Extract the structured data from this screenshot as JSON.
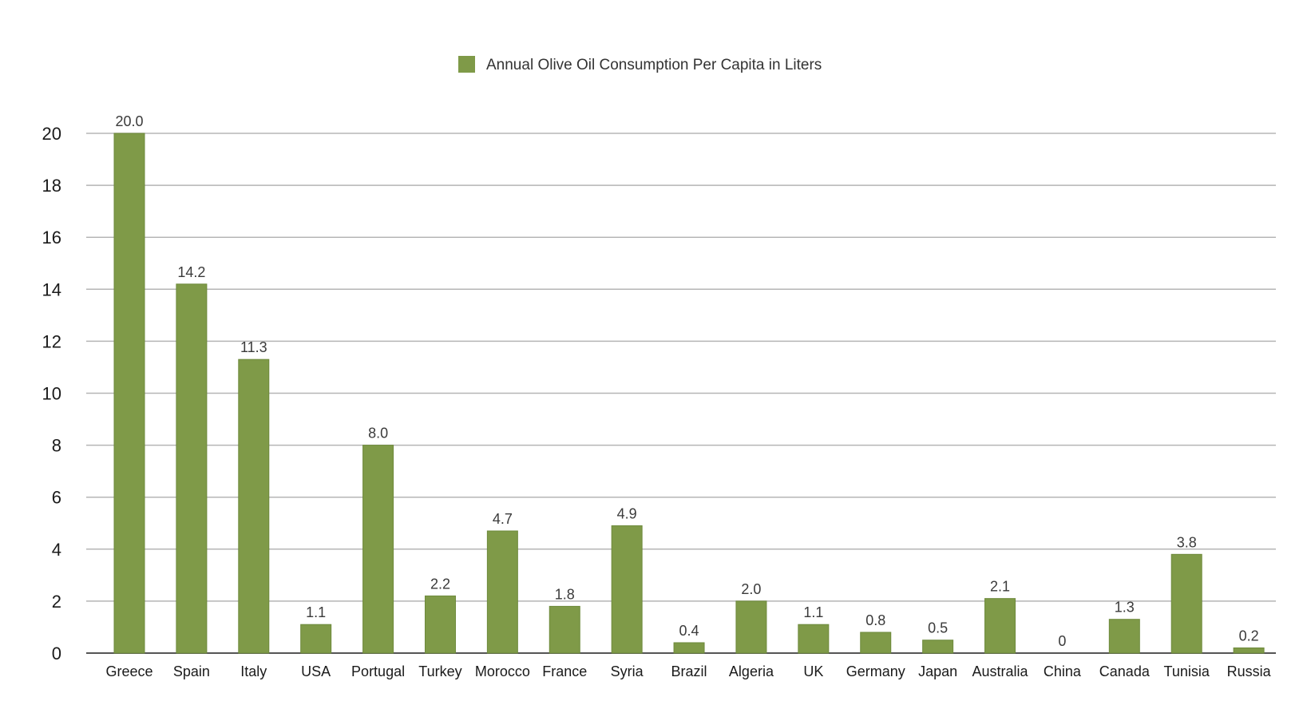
{
  "chart_data": {
    "type": "bar",
    "legend": "Annual Olive Oil Consumption Per Capita in Liters",
    "legend_position": "top-center",
    "grid": true,
    "ylim": [
      0,
      20
    ],
    "yticks": [
      0,
      2,
      4,
      6,
      8,
      10,
      12,
      14,
      16,
      18,
      20
    ],
    "categories": [
      "Greece",
      "Spain",
      "Italy",
      "USA",
      "Portugal",
      "Turkey",
      "Morocco",
      "France",
      "Syria",
      "Brazil",
      "Algeria",
      "UK",
      "Germany",
      "Japan",
      "Australia",
      "China",
      "Canada",
      "Tunisia",
      "Russia"
    ],
    "series": [
      {
        "name": "Annual Olive Oil Consumption Per Capita in Liters",
        "values": [
          20.0,
          14.2,
          11.3,
          1.1,
          8.0,
          2.2,
          4.7,
          1.8,
          4.9,
          0.4,
          2.0,
          1.1,
          0.8,
          0.5,
          2.1,
          0,
          1.3,
          3.8,
          0.2
        ],
        "labels": [
          "20.0",
          "14.2",
          "11.3",
          "1.1",
          "8.0",
          "2.2",
          "4.7",
          "1.8",
          "4.9",
          "0.4",
          "2.0",
          "1.1",
          "0.8",
          "0.5",
          "2.1",
          "0",
          "1.3",
          "3.8",
          "0.2"
        ]
      }
    ],
    "colors": {
      "bar": "#7f9a48",
      "bar_edge": "#6e8a3c",
      "grid": "#b5b5b5",
      "axis": "#555555"
    }
  }
}
